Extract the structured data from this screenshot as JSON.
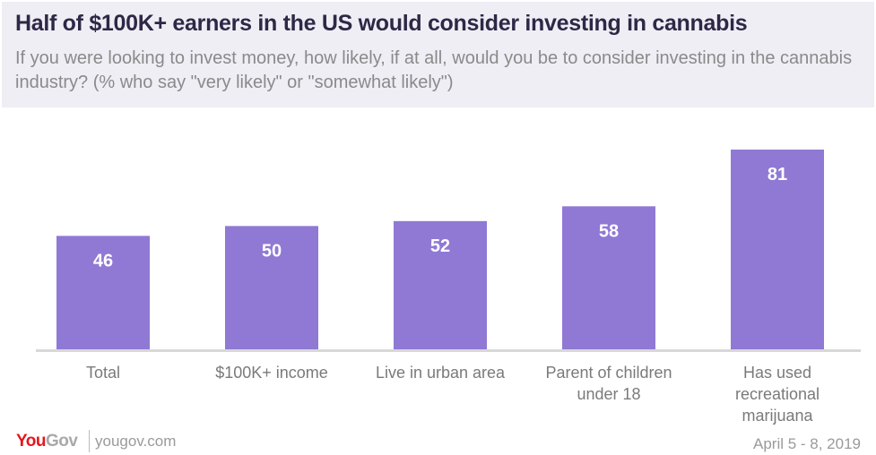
{
  "header": {
    "title": "Half of $100K+ earners in the US would consider investing in cannabis",
    "subtitle": "If you were looking to invest money, how likely, if at all, would you be to consider investing in the cannabis industry? (% who say \"very likely\" or \"somewhat likely\")"
  },
  "chart_data": {
    "type": "bar",
    "title": "Half of $100K+ earners in the US would consider investing in cannabis",
    "subtitle": "If you were looking to invest money, how likely, if at all, would you be to consider investing in the cannabis industry? (% who say \"very likely\" or \"somewhat likely\")",
    "categories": [
      "Total",
      "$100K+ income",
      "Live in urban area",
      "Parent of children under 18",
      "Has used recreational marijuana"
    ],
    "category_lines": [
      [
        "Total"
      ],
      [
        "$100K+ income"
      ],
      [
        "Live in urban area"
      ],
      [
        "Parent of children",
        "under 18"
      ],
      [
        "Has used",
        "recreational",
        "marijuana"
      ]
    ],
    "values": [
      46,
      50,
      52,
      58,
      81
    ],
    "labels": [
      "46",
      "50",
      "52",
      "58",
      "81"
    ],
    "xlabel": "",
    "ylabel": "",
    "ylim": [
      0,
      100
    ],
    "grid": false,
    "bar_color": "#9079d4",
    "axis_color": "#d8d8d8",
    "label_color": "#ffffff"
  },
  "footer": {
    "logo": "YouGov",
    "logo_you": "You",
    "logo_gov": "Gov",
    "site": "yougov.com",
    "date": "April 5 - 8, 2019"
  },
  "colors": {
    "header_bg": "#efeef5",
    "title": "#2e2846",
    "subtitle": "#8a8a8a",
    "brand_red": "#e4171d"
  }
}
